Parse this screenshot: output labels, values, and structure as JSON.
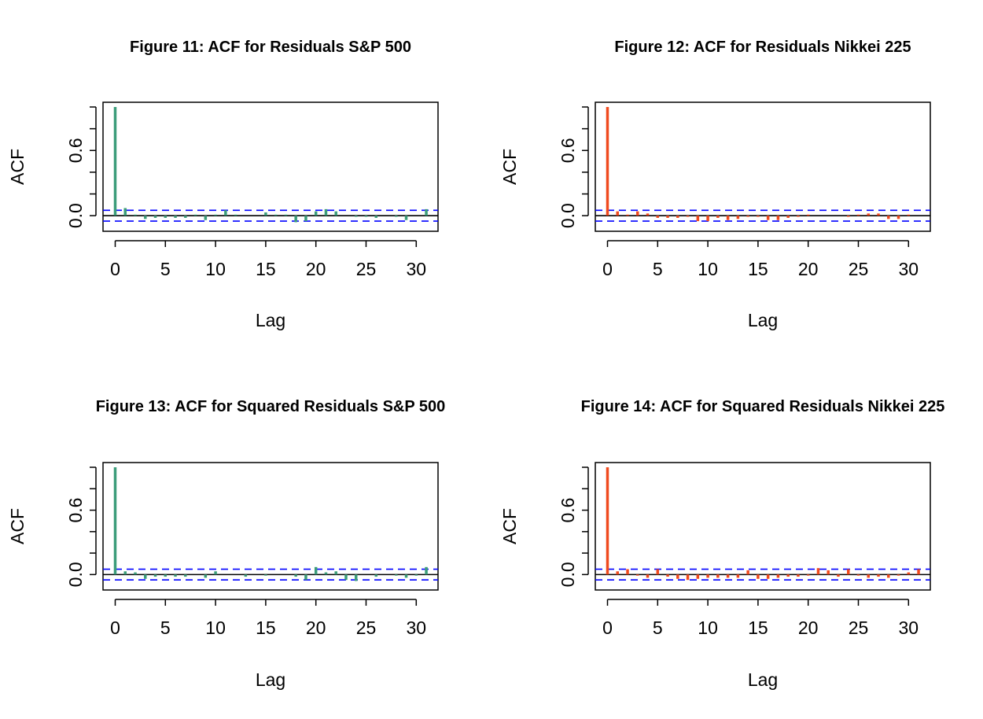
{
  "chart_data": [
    {
      "type": "bar",
      "title": "Figure 11: ACF for Residuals S&P 500",
      "xlabel": "Lag",
      "ylabel": "ACF",
      "xlim": [
        -1,
        32
      ],
      "ylim": [
        -0.1,
        1.0
      ],
      "x_ticks": [
        "0",
        "5",
        "10",
        "15",
        "20",
        "25",
        "30"
      ],
      "y_ticks": [
        "0.0",
        "0.6"
      ],
      "confidence_band": [
        -0.05,
        0.05
      ],
      "colors": {
        "bars": "#3c9d7a",
        "band": "#0000ff",
        "zero_line": "#000000"
      },
      "x": [
        0,
        1,
        2,
        3,
        4,
        5,
        6,
        7,
        8,
        9,
        10,
        11,
        12,
        13,
        14,
        15,
        16,
        17,
        18,
        19,
        20,
        21,
        22,
        23,
        24,
        25,
        26,
        27,
        28,
        29,
        30,
        31
      ],
      "values": [
        1.0,
        0.07,
        0.01,
        -0.03,
        -0.02,
        -0.02,
        -0.02,
        -0.02,
        0.01,
        -0.04,
        0.01,
        0.05,
        0.01,
        0.0,
        0.0,
        0.03,
        0.01,
        0.01,
        -0.06,
        -0.05,
        0.04,
        0.06,
        0.04,
        0.0,
        -0.01,
        -0.01,
        -0.02,
        0.0,
        -0.01,
        -0.04,
        0.0,
        0.06
      ]
    },
    {
      "type": "bar",
      "title": "Figure 12: ACF for Residuals Nikkei 225",
      "xlabel": "Lag",
      "ylabel": "ACF",
      "xlim": [
        -1,
        32
      ],
      "ylim": [
        -0.1,
        1.0
      ],
      "x_ticks": [
        "0",
        "5",
        "10",
        "15",
        "20",
        "25",
        "30"
      ],
      "y_ticks": [
        "0.0",
        "0.6"
      ],
      "confidence_band": [
        -0.05,
        0.05
      ],
      "colors": {
        "bars": "#f04a1f",
        "band": "#0000ff",
        "zero_line": "#000000"
      },
      "x": [
        0,
        1,
        2,
        3,
        4,
        5,
        6,
        7,
        8,
        9,
        10,
        11,
        12,
        13,
        14,
        15,
        16,
        17,
        18,
        19,
        20,
        21,
        22,
        23,
        24,
        25,
        26,
        27,
        28,
        29,
        30,
        31
      ],
      "values": [
        1.0,
        0.04,
        0.01,
        0.04,
        0.02,
        -0.02,
        -0.02,
        -0.02,
        -0.01,
        -0.05,
        -0.05,
        -0.02,
        -0.04,
        -0.03,
        -0.01,
        -0.01,
        -0.04,
        -0.04,
        -0.02,
        -0.01,
        0.01,
        0.0,
        0.0,
        0.0,
        -0.01,
        0.01,
        0.02,
        0.02,
        -0.03,
        -0.03,
        0.01,
        0.0
      ]
    },
    {
      "type": "bar",
      "title": "Figure 13: ACF for Squared Residuals S&P 500",
      "xlabel": "Lag",
      "ylabel": "ACF",
      "xlim": [
        -1,
        32
      ],
      "ylim": [
        -0.1,
        1.0
      ],
      "x_ticks": [
        "0",
        "5",
        "10",
        "15",
        "20",
        "25",
        "30"
      ],
      "y_ticks": [
        "0.0",
        "0.6"
      ],
      "confidence_band": [
        -0.05,
        0.05
      ],
      "colors": {
        "bars": "#3c9d7a",
        "band": "#0000ff",
        "zero_line": "#000000"
      },
      "x": [
        0,
        1,
        2,
        3,
        4,
        5,
        6,
        7,
        8,
        9,
        10,
        11,
        12,
        13,
        14,
        15,
        16,
        17,
        18,
        19,
        20,
        21,
        22,
        23,
        24,
        25,
        26,
        27,
        28,
        29,
        30,
        31
      ],
      "values": [
        1.0,
        0.03,
        0.02,
        -0.04,
        -0.02,
        -0.02,
        -0.02,
        -0.02,
        0.0,
        -0.03,
        0.03,
        0.0,
        0.0,
        -0.02,
        0.0,
        -0.01,
        0.0,
        0.0,
        -0.02,
        -0.05,
        0.07,
        0.02,
        0.03,
        -0.05,
        -0.06,
        0.0,
        -0.02,
        0.0,
        -0.01,
        -0.03,
        -0.01,
        0.07
      ]
    },
    {
      "type": "bar",
      "title": "Figure 14: ACF for Squared Residuals Nikkei 225",
      "xlabel": "Lag",
      "ylabel": "ACF",
      "xlim": [
        -1,
        32
      ],
      "ylim": [
        -0.1,
        1.0
      ],
      "x_ticks": [
        "0",
        "5",
        "10",
        "15",
        "20",
        "25",
        "30"
      ],
      "y_ticks": [
        "0.0",
        "0.6"
      ],
      "confidence_band": [
        -0.05,
        0.05
      ],
      "colors": {
        "bars": "#f04a1f",
        "band": "#0000ff",
        "zero_line": "#000000"
      },
      "x": [
        0,
        1,
        2,
        3,
        4,
        5,
        6,
        7,
        8,
        9,
        10,
        11,
        12,
        13,
        14,
        15,
        16,
        17,
        18,
        19,
        20,
        21,
        22,
        23,
        24,
        25,
        26,
        27,
        28,
        29,
        30,
        31
      ],
      "values": [
        1.0,
        0.03,
        0.05,
        -0.01,
        -0.03,
        0.05,
        -0.02,
        -0.04,
        -0.05,
        -0.04,
        -0.03,
        -0.03,
        -0.03,
        -0.03,
        0.04,
        -0.04,
        -0.04,
        -0.03,
        -0.02,
        -0.02,
        -0.01,
        0.06,
        0.04,
        -0.02,
        0.05,
        -0.01,
        -0.03,
        -0.02,
        -0.03,
        -0.01,
        0.02,
        0.05
      ]
    }
  ]
}
